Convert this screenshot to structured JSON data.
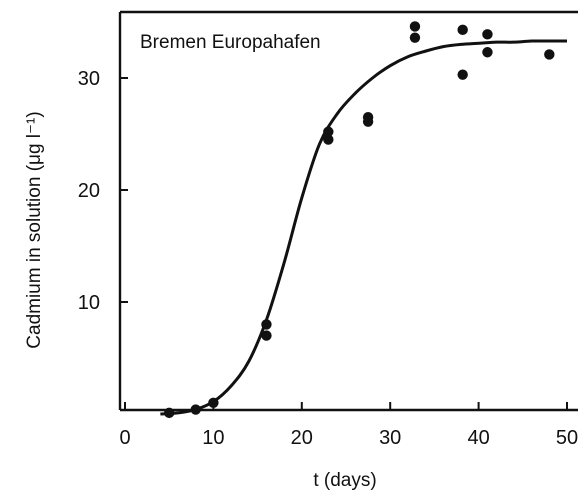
{
  "chart_data": {
    "type": "scatter",
    "annotation": "Bremen Europahafen",
    "xlabel": "t (days)",
    "ylabel": "Cadmium in solution (μg l⁻¹)",
    "xlim": [
      0,
      50
    ],
    "ylim": [
      0,
      36
    ],
    "xticks": [
      0,
      10,
      20,
      30,
      40,
      50
    ],
    "yticks": [
      10,
      20,
      30
    ],
    "grid": false,
    "legend": "none",
    "series": [
      {
        "kind": "points",
        "x": [
          5,
          8,
          10,
          16,
          16,
          23,
          23,
          27.5,
          27.5,
          32.8,
          32.8,
          38.2,
          38.2,
          41,
          41,
          48
        ],
        "y": [
          0.1,
          0.4,
          1.0,
          7.0,
          8.0,
          24.5,
          25.2,
          26.1,
          26.5,
          33.6,
          34.6,
          30.3,
          34.3,
          32.3,
          33.9,
          32.1
        ]
      },
      {
        "kind": "fitted-curve",
        "x": [
          4,
          6,
          8,
          10,
          12,
          14,
          16,
          18,
          20,
          22,
          24,
          26,
          28,
          30,
          32,
          34,
          36,
          38,
          40,
          42,
          44,
          46,
          48,
          50
        ],
        "y": [
          0.0,
          0.1,
          0.4,
          1.1,
          2.5,
          4.7,
          8.4,
          13.5,
          19.3,
          24.1,
          26.8,
          28.6,
          30.0,
          31.1,
          31.9,
          32.4,
          32.8,
          33.0,
          33.1,
          33.2,
          33.2,
          33.3,
          33.3,
          33.3
        ]
      }
    ]
  }
}
